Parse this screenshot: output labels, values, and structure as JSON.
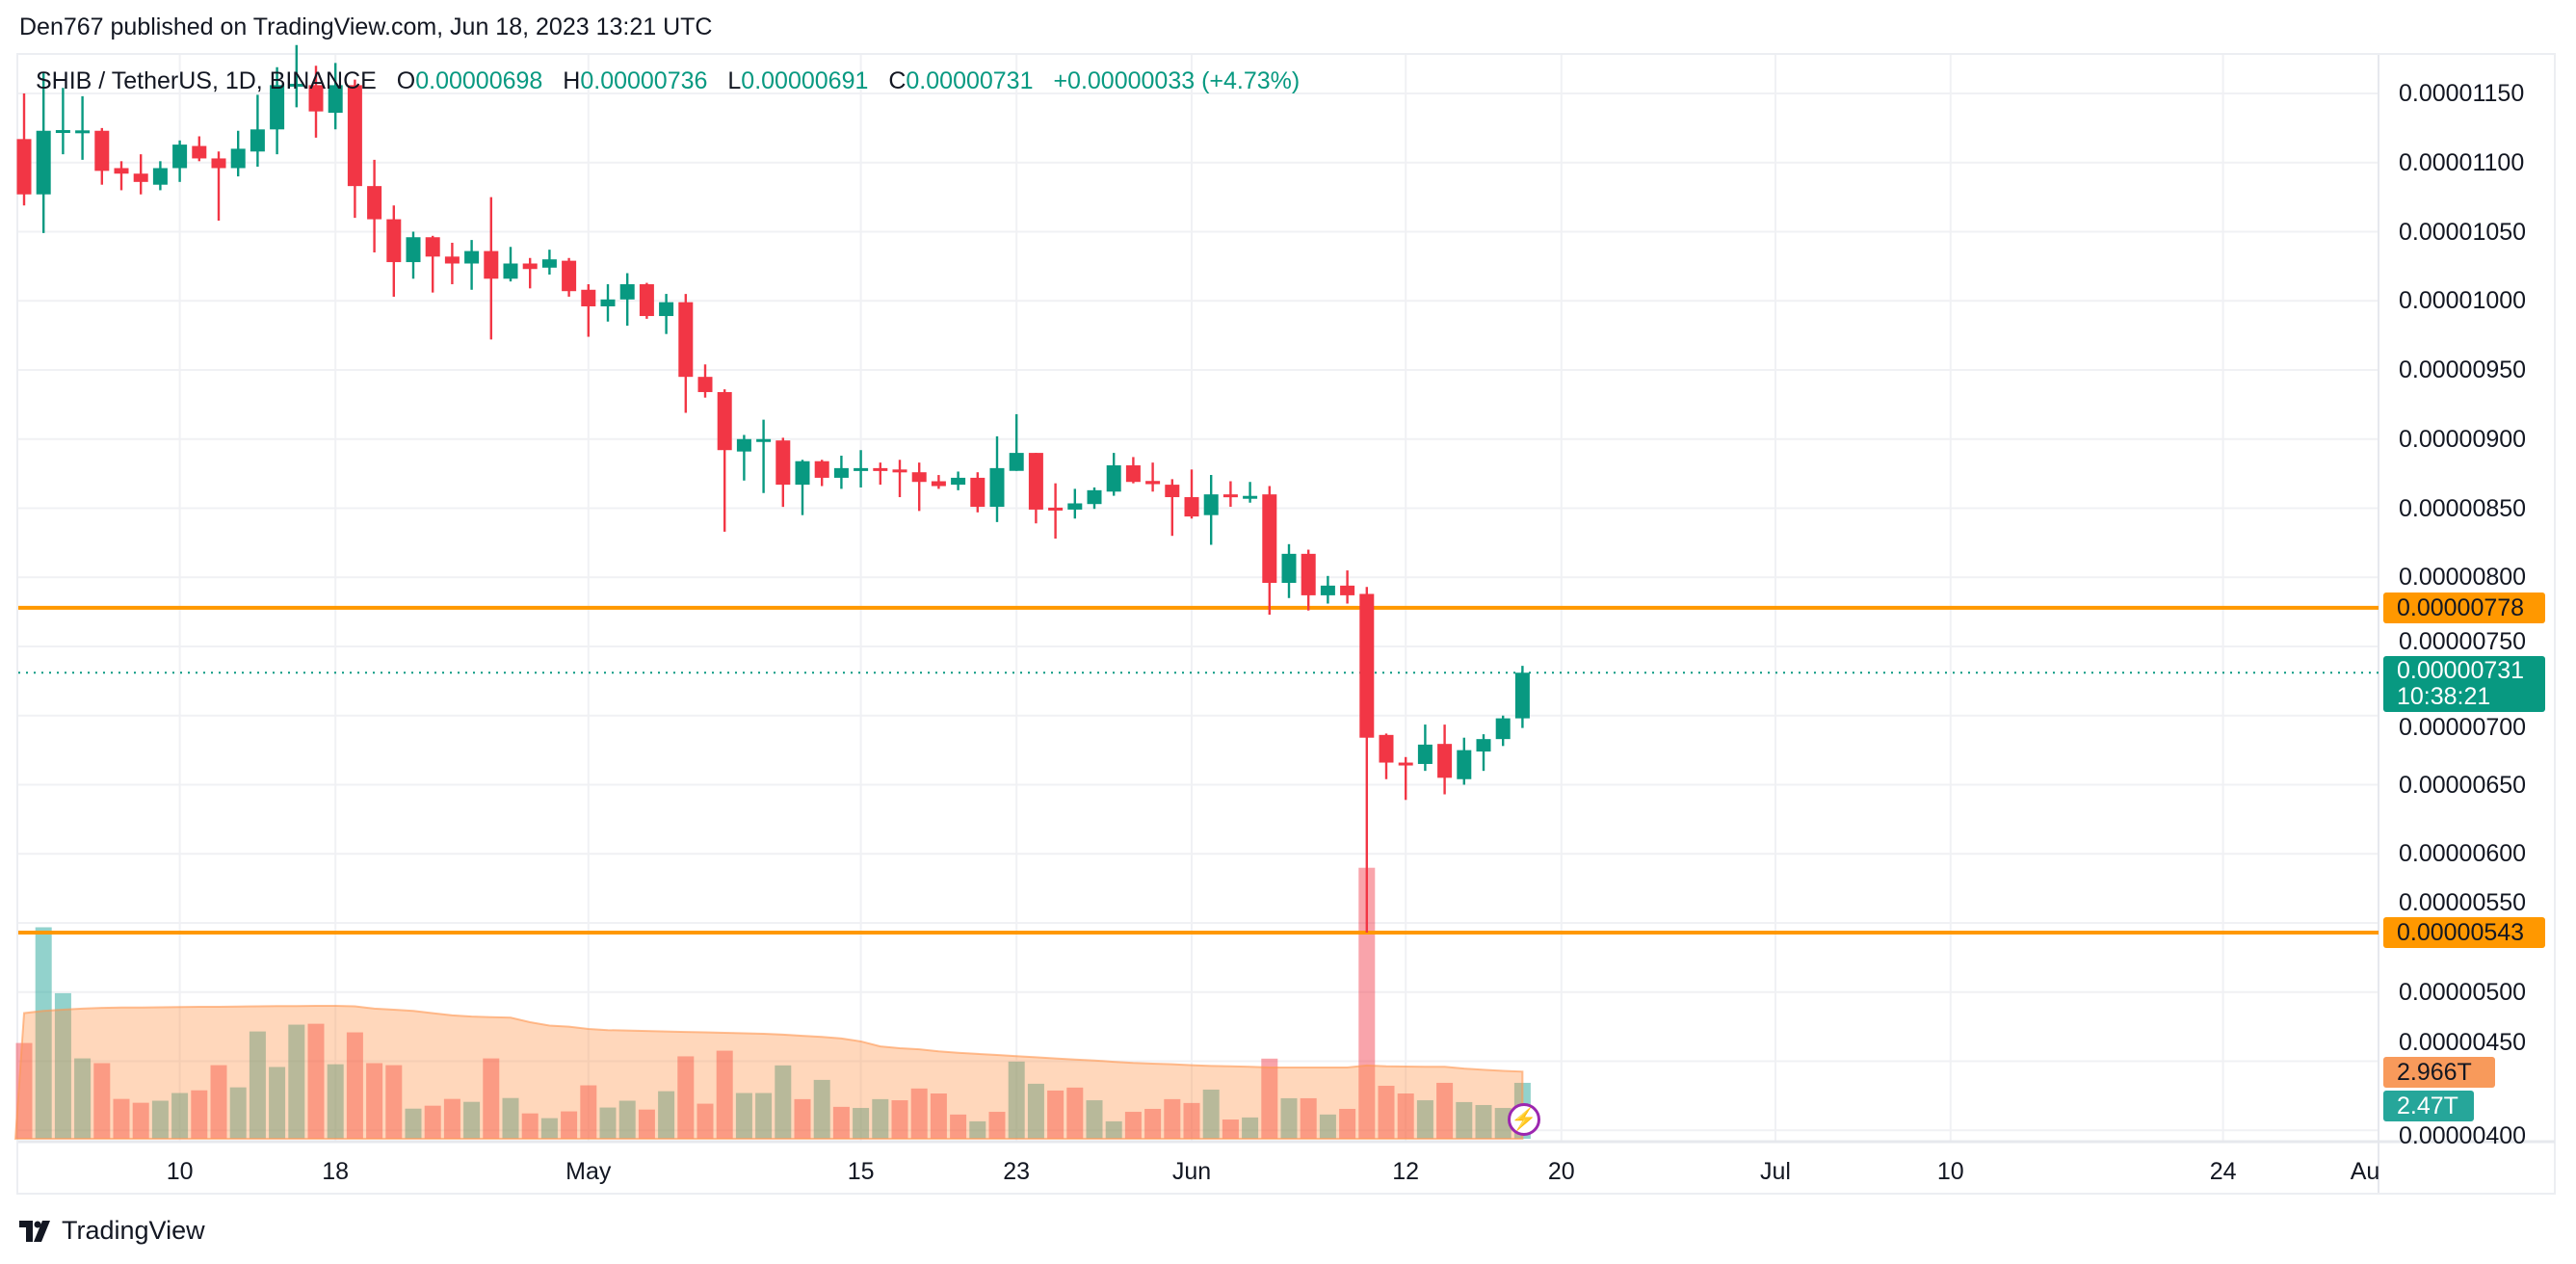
{
  "header": {
    "published": "Den767 published on TradingView.com, Jun 18, 2023 13:21 UTC"
  },
  "legend": {
    "symbol": "SHIB / TetherUS, 1D, BINANCE",
    "o_label": "O",
    "o_value": "0.00000698",
    "h_label": "H",
    "h_value": "0.00000736",
    "l_label": "L",
    "l_value": "0.00000691",
    "c_label": "C",
    "c_value": "0.00000731",
    "change": "+0.00000033 (+4.73%)"
  },
  "colors": {
    "up": "#089981",
    "down": "#f23645",
    "level": "#ff9800",
    "vol_ma": "#ff9800",
    "accent": "#9c27b0"
  },
  "price_axis": {
    "labels": [
      "0.00001150",
      "0.00001100",
      "0.00001050",
      "0.00001000",
      "0.00000950",
      "0.00000900",
      "0.00000850",
      "0.00000800",
      "0.00000750",
      "0.00000700",
      "0.00000650",
      "0.00000600",
      "0.00000550",
      "0.00000500",
      "0.00000450",
      "0.00000400"
    ],
    "values": [
      1150,
      1100,
      1050,
      1000,
      950,
      900,
      850,
      800,
      750,
      700,
      650,
      600,
      550,
      500,
      450,
      400
    ],
    "unit": "1e-8"
  },
  "levels": [
    {
      "value": 778,
      "label": "0.00000778"
    },
    {
      "value": 543,
      "label": "0.00000543"
    }
  ],
  "last_price": {
    "value": 731,
    "label": "0.00000731",
    "countdown": "10:38:21"
  },
  "volume_badges": {
    "ma": "2.966T",
    "current": "2.47T"
  },
  "time_axis": [
    {
      "label": "10",
      "day": 8
    },
    {
      "label": "18",
      "day": 16
    },
    {
      "label": "May",
      "day": 29
    },
    {
      "label": "15",
      "day": 43
    },
    {
      "label": "23",
      "day": 51
    },
    {
      "label": "Jun",
      "day": 60
    },
    {
      "label": "12",
      "day": 71
    },
    {
      "label": "20",
      "day": 79
    },
    {
      "label": "Jul",
      "day": 90
    },
    {
      "label": "10",
      "day": 99
    },
    {
      "label": "24",
      "day": 113
    },
    {
      "label": "Au",
      "day": 121
    }
  ],
  "footer": {
    "brand": "TradingView"
  },
  "chart_data": {
    "type": "candlestick",
    "title": "SHIB / TetherUS, 1D, BINANCE",
    "start_date": "Apr 2",
    "price_unit": "1e-8 USDT",
    "ylim": [
      395,
      1185
    ],
    "ohlc": [
      [
        1117,
        1150,
        1069,
        1077
      ],
      [
        1077,
        1165,
        1049,
        1123
      ],
      [
        1123,
        1154,
        1106,
        1123.5
      ],
      [
        1123,
        1148,
        1102,
        1123.3
      ],
      [
        1123,
        1125,
        1084,
        1094
      ],
      [
        1096,
        1101,
        1080,
        1092
      ],
      [
        1092,
        1106,
        1077,
        1086
      ],
      [
        1084,
        1101,
        1080,
        1096
      ],
      [
        1096,
        1116,
        1086,
        1113
      ],
      [
        1112,
        1119,
        1101,
        1103
      ],
      [
        1103,
        1108,
        1058,
        1096
      ],
      [
        1096,
        1123,
        1090,
        1110
      ],
      [
        1108,
        1149,
        1097,
        1124
      ],
      [
        1124,
        1169,
        1106,
        1156
      ],
      [
        1155,
        1185,
        1140,
        1157
      ],
      [
        1156,
        1170,
        1118,
        1137
      ],
      [
        1136,
        1172,
        1124,
        1156
      ],
      [
        1156,
        1160,
        1060,
        1083
      ],
      [
        1083,
        1102,
        1035,
        1059
      ],
      [
        1059,
        1069,
        1003,
        1028
      ],
      [
        1028,
        1050,
        1016,
        1046
      ],
      [
        1046,
        1047,
        1006,
        1032
      ],
      [
        1032,
        1042,
        1012,
        1027
      ],
      [
        1027,
        1044,
        1008,
        1036
      ],
      [
        1036,
        1075,
        972,
        1016
      ],
      [
        1016,
        1039,
        1014,
        1027
      ],
      [
        1027,
        1031,
        1009,
        1023
      ],
      [
        1024,
        1037,
        1019,
        1030
      ],
      [
        1029,
        1031,
        1003,
        1007
      ],
      [
        1008,
        1012,
        974,
        996
      ],
      [
        996,
        1012,
        985,
        1001
      ],
      [
        1001,
        1020,
        982,
        1012
      ],
      [
        1012,
        1013,
        987,
        989
      ],
      [
        989,
        1005,
        976,
        999
      ],
      [
        999,
        1005,
        919,
        945
      ],
      [
        945,
        954,
        930,
        934
      ],
      [
        934,
        936,
        833,
        892
      ],
      [
        891,
        903,
        870,
        900
      ],
      [
        899,
        914,
        861,
        900
      ],
      [
        899,
        901,
        851,
        867
      ],
      [
        867,
        885,
        845,
        884
      ],
      [
        884,
        885,
        866,
        872
      ],
      [
        872,
        888,
        864,
        879
      ],
      [
        878.5,
        892,
        865,
        879
      ],
      [
        879,
        883,
        867,
        877
      ],
      [
        878,
        885,
        858,
        876
      ],
      [
        876,
        883,
        848,
        869
      ],
      [
        869.5,
        874,
        864,
        866
      ],
      [
        867,
        876.5,
        863,
        872
      ],
      [
        872,
        876,
        847,
        851
      ],
      [
        851,
        902,
        840,
        879
      ],
      [
        877,
        918,
        877,
        890
      ],
      [
        890,
        890,
        839,
        849
      ],
      [
        850.4,
        868,
        828,
        849.3
      ],
      [
        849,
        864,
        842.5,
        853.5
      ],
      [
        853,
        865,
        849.5,
        863
      ],
      [
        862,
        890,
        859,
        881
      ],
      [
        881,
        887,
        868,
        869
      ],
      [
        869.7,
        883,
        862,
        867.4
      ],
      [
        867,
        871,
        830,
        858
      ],
      [
        858,
        878,
        842.5,
        844
      ],
      [
        845,
        874,
        823.5,
        860
      ],
      [
        860,
        869.5,
        851,
        858
      ],
      [
        858.6,
        869,
        854,
        858.9
      ],
      [
        860,
        866,
        773,
        796
      ],
      [
        796,
        824,
        785,
        817
      ],
      [
        817,
        820,
        776,
        787
      ],
      [
        787,
        801,
        781,
        794
      ],
      [
        794,
        805,
        781,
        787
      ],
      [
        788,
        793,
        543,
        684
      ],
      [
        686,
        687,
        654,
        666
      ],
      [
        666,
        670,
        639,
        665
      ],
      [
        665,
        693.5,
        660,
        679
      ],
      [
        679.5,
        693.5,
        643,
        655
      ],
      [
        654,
        684,
        650,
        675
      ],
      [
        674,
        686.5,
        660,
        683
      ],
      [
        683,
        700,
        678,
        698
      ],
      [
        698,
        736,
        691,
        731
      ]
    ],
    "volume_T": [
      4.23,
      9.34,
      6.43,
      3.55,
      3.34,
      1.76,
      1.59,
      1.68,
      2.02,
      2.14,
      3.25,
      2.27,
      4.74,
      3.17,
      5.04,
      5.08,
      3.29,
      4.7,
      3.34,
      3.25,
      1.33,
      1.46,
      1.76,
      1.63,
      3.55,
      1.8,
      1.12,
      0.91,
      1.21,
      2.36,
      1.38,
      1.68,
      1.29,
      2.1,
      3.64,
      1.55,
      3.89,
      2.02,
      2.02,
      3.24,
      1.75,
      2.6,
      1.41,
      1.36,
      1.75,
      1.7,
      2.22,
      2.0,
      1.07,
      0.77,
      1.19,
      3.41,
      2.43,
      2.13,
      2.26,
      1.7,
      0.77,
      1.19,
      1.32,
      1.75,
      1.58,
      2.17,
      0.85,
      0.94,
      3.54,
      1.79,
      1.79,
      1.07,
      1.32,
      11.97,
      2.34,
      2.0,
      1.7,
      2.47,
      1.62,
      1.49,
      1.36,
      2.47
    ],
    "volume_up": [
      0,
      1,
      1,
      1,
      0,
      0,
      0,
      1,
      1,
      0,
      0,
      1,
      1,
      1,
      1,
      0,
      1,
      0,
      0,
      0,
      1,
      0,
      0,
      1,
      0,
      1,
      0,
      1,
      0,
      0,
      1,
      1,
      0,
      1,
      0,
      0,
      0,
      1,
      1,
      1,
      0,
      1,
      0,
      1,
      1,
      0,
      0,
      0,
      0,
      1,
      0,
      1,
      1,
      0,
      0,
      1,
      1,
      0,
      0,
      0,
      0,
      1,
      0,
      1,
      0,
      1,
      0,
      1,
      0,
      0,
      0,
      0,
      1,
      0,
      1,
      1,
      1,
      1
    ],
    "volume_ma_T": [
      5.55,
      5.65,
      5.7,
      5.75,
      5.78,
      5.8,
      5.8,
      5.81,
      5.82,
      5.83,
      5.83,
      5.84,
      5.85,
      5.86,
      5.86,
      5.87,
      5.87,
      5.85,
      5.75,
      5.7,
      5.65,
      5.55,
      5.45,
      5.4,
      5.37,
      5.35,
      5.15,
      5.0,
      4.95,
      4.85,
      4.8,
      4.78,
      4.76,
      4.74,
      4.72,
      4.7,
      4.68,
      4.66,
      4.64,
      4.6,
      4.55,
      4.5,
      4.43,
      4.3,
      4.08,
      4.0,
      3.95,
      3.86,
      3.8,
      3.75,
      3.7,
      3.65,
      3.6,
      3.55,
      3.5,
      3.46,
      3.4,
      3.35,
      3.32,
      3.29,
      3.25,
      3.22,
      3.2,
      3.18,
      3.15,
      3.15,
      3.15,
      3.15,
      3.15,
      3.24,
      3.2,
      3.19,
      3.18,
      3.18,
      3.1,
      3.05,
      3.0,
      2.966
    ]
  }
}
